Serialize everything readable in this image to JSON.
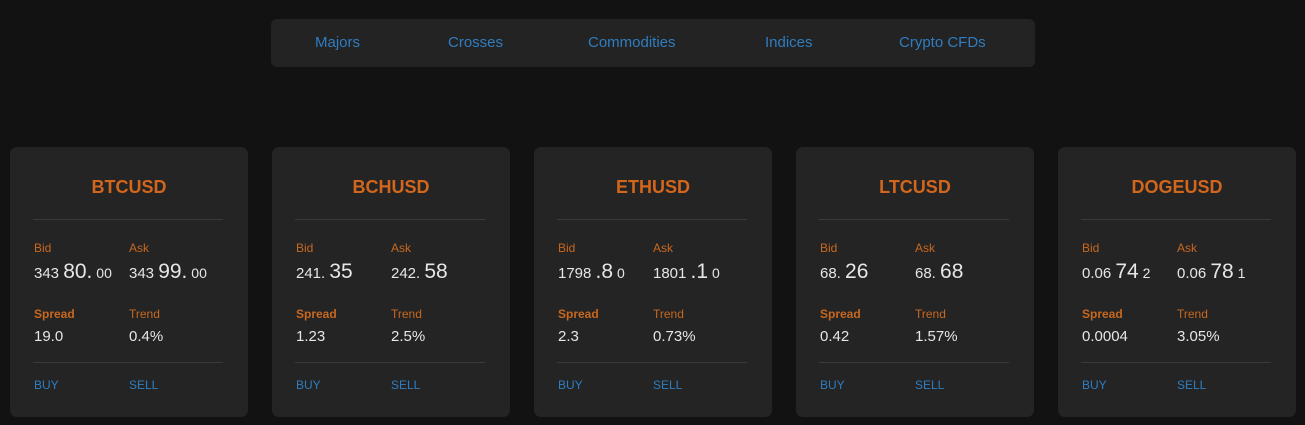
{
  "tabs": [
    "Majors",
    "Crosses",
    "Commodities",
    "Indices",
    "Crypto CFDs"
  ],
  "labels": {
    "bid": "Bid",
    "ask": "Ask",
    "spread": "Spread",
    "trend": "Trend",
    "buy": "BUY",
    "sell": "SELL"
  },
  "colors": {
    "background": "#121212",
    "panel": "#242424",
    "accent_orange": "#d2661c",
    "link_blue": "#2f7dc0",
    "text": "#e6e6e6"
  },
  "cards": [
    {
      "symbol": "BTCUSD",
      "bid": {
        "small": "343 ",
        "large": "80.",
        "extra": " 00"
      },
      "ask": {
        "small": "343 ",
        "large": "99.",
        "extra": " 00"
      },
      "spread": "19.0",
      "trend": "0.4%"
    },
    {
      "symbol": "BCHUSD",
      "bid": {
        "small": "241. ",
        "large": "35",
        "extra": ""
      },
      "ask": {
        "small": "242. ",
        "large": "58",
        "extra": ""
      },
      "spread": "1.23",
      "trend": "2.5%"
    },
    {
      "symbol": "ETHUSD",
      "bid": {
        "small": "1798 ",
        "large": ".8",
        "extra": " 0"
      },
      "ask": {
        "small": "1801 ",
        "large": ".1",
        "extra": " 0"
      },
      "spread": "2.3",
      "trend": "0.73%"
    },
    {
      "symbol": "LTCUSD",
      "bid": {
        "small": "68. ",
        "large": "26",
        "extra": ""
      },
      "ask": {
        "small": "68. ",
        "large": "68",
        "extra": ""
      },
      "spread": "0.42",
      "trend": "1.57%"
    },
    {
      "symbol": "DOGEUSD",
      "bid": {
        "small": "0.06 ",
        "large": "74",
        "extra": " 2"
      },
      "ask": {
        "small": "0.06 ",
        "large": "78",
        "extra": " 1"
      },
      "spread": "0.0004",
      "trend": "3.05%"
    }
  ]
}
